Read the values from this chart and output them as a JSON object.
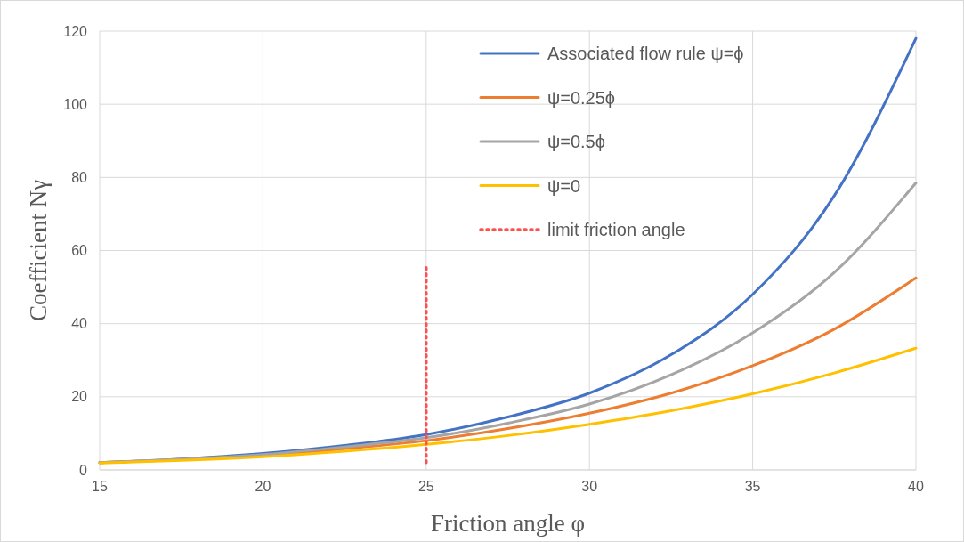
{
  "chart_data": {
    "type": "line",
    "xlabel": "Friction angle φ",
    "ylabel": "Coefficient Nγ",
    "xlim": [
      15,
      40
    ],
    "xticks": [
      15,
      20,
      25,
      30,
      35,
      40
    ],
    "ylim": [
      0,
      120
    ],
    "yticks": [
      0,
      20,
      40,
      60,
      80,
      100,
      120
    ],
    "grid": true,
    "legend": "top right",
    "line_style": "solid",
    "marker": "none",
    "x": [
      15,
      17.5,
      20,
      22.5,
      25,
      27.5,
      30,
      32.5,
      35,
      37.5,
      40
    ],
    "series": [
      {
        "name": "Associated flow rule ψ=ϕ",
        "color": "#4472c4",
        "values": [
          2,
          3,
          4.5,
          6.7,
          9.7,
          14.5,
          21,
          31.5,
          48,
          75,
          118
        ]
      },
      {
        "name": "ψ=0.25ϕ",
        "color": "#ed7d31",
        "values": [
          2,
          2.8,
          4,
          5.8,
          8,
          11.3,
          15.5,
          21,
          28.5,
          38.5,
          52.5
        ]
      },
      {
        "name": "ψ=0.5ϕ",
        "color": "#a5a5a5",
        "values": [
          2,
          2.9,
          4.2,
          6.3,
          8.8,
          12.8,
          18,
          26,
          37.5,
          54,
          78.5
        ]
      },
      {
        "name": "ψ=0",
        "color": "#ffc000",
        "values": [
          1.9,
          2.6,
          3.6,
          5.1,
          7,
          9.4,
          12.5,
          16.2,
          20.8,
          26.5,
          33.3
        ]
      },
      {
        "name": "limit friction angle",
        "color": "#ff5050",
        "line_style": "dotted",
        "x": [
          25,
          25
        ],
        "values": [
          2,
          56
        ]
      }
    ]
  }
}
